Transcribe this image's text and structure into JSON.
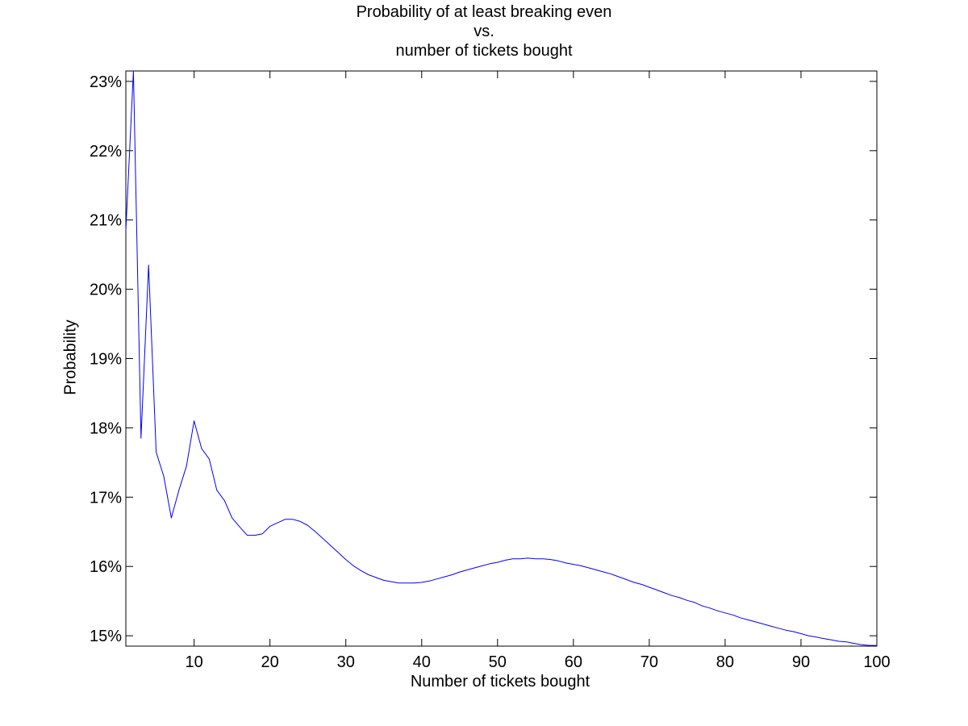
{
  "chart_data": {
    "type": "line",
    "title_lines": [
      "Probability of at least breaking even",
      "vs.",
      "number of tickets bought"
    ],
    "xlabel": "Number of tickets bought",
    "ylabel": "Probability",
    "xlim": [
      1,
      100
    ],
    "ylim": [
      0.1485,
      0.2315
    ],
    "xticks": [
      10,
      20,
      30,
      40,
      50,
      60,
      70,
      80,
      90,
      100
    ],
    "xtick_labels": [
      "10",
      "20",
      "30",
      "40",
      "50",
      "60",
      "70",
      "80",
      "90",
      "100"
    ],
    "yticks": [
      0.15,
      0.16,
      0.17,
      0.18,
      0.19,
      0.2,
      0.21,
      0.22,
      0.23
    ],
    "ytick_labels": [
      "15%",
      "16%",
      "17%",
      "18%",
      "19%",
      "20%",
      "21%",
      "22%",
      "23%"
    ],
    "grid": false,
    "line_color": "#0000ff",
    "series": [
      {
        "x": [
          1,
          2,
          3,
          4,
          5,
          6,
          7,
          8,
          9,
          10,
          11,
          12,
          13,
          14,
          15,
          16,
          17,
          18,
          19,
          20,
          21,
          22,
          23,
          24,
          25,
          26,
          27,
          28,
          29,
          30,
          31,
          32,
          33,
          34,
          35,
          36,
          37,
          38,
          39,
          40,
          41,
          42,
          43,
          44,
          45,
          46,
          47,
          48,
          49,
          50,
          51,
          52,
          53,
          54,
          55,
          56,
          57,
          58,
          59,
          60,
          61,
          62,
          63,
          64,
          65,
          66,
          67,
          68,
          69,
          70,
          71,
          72,
          73,
          74,
          75,
          76,
          77,
          78,
          79,
          80,
          81,
          82,
          83,
          84,
          85,
          86,
          87,
          88,
          89,
          90,
          91,
          92,
          93,
          94,
          95,
          96,
          97,
          98,
          99,
          100
        ],
        "y": [
          0.2085,
          0.2315,
          0.1785,
          0.2035,
          0.1765,
          0.173,
          0.167,
          0.171,
          0.1745,
          0.181,
          0.177,
          0.1755,
          0.171,
          0.1695,
          0.167,
          0.1657,
          0.1645,
          0.1645,
          0.1647,
          0.1658,
          0.1663,
          0.1668,
          0.1668,
          0.1665,
          0.1659,
          0.165,
          0.164,
          0.163,
          0.162,
          0.161,
          0.1601,
          0.1594,
          0.1588,
          0.1584,
          0.158,
          0.1578,
          0.1576,
          0.1576,
          0.1576,
          0.1577,
          0.1579,
          0.1582,
          0.1585,
          0.1588,
          0.1592,
          0.1595,
          0.1598,
          0.1601,
          0.1604,
          0.1606,
          0.1609,
          0.1611,
          0.1611,
          0.1612,
          0.1611,
          0.1611,
          0.161,
          0.1608,
          0.1605,
          0.1603,
          0.1601,
          0.1598,
          0.1595,
          0.1592,
          0.1589,
          0.1585,
          0.1581,
          0.1577,
          0.1574,
          0.157,
          0.1566,
          0.1562,
          0.1558,
          0.1555,
          0.1551,
          0.1548,
          0.1543,
          0.154,
          0.1536,
          0.1533,
          0.153,
          0.1526,
          0.1523,
          0.152,
          0.1517,
          0.1514,
          0.1511,
          0.1508,
          0.1506,
          0.1503,
          0.15,
          0.1498,
          0.1496,
          0.1494,
          0.1492,
          0.1491,
          0.1489,
          0.1487,
          0.1486,
          0.1486
        ]
      }
    ]
  }
}
